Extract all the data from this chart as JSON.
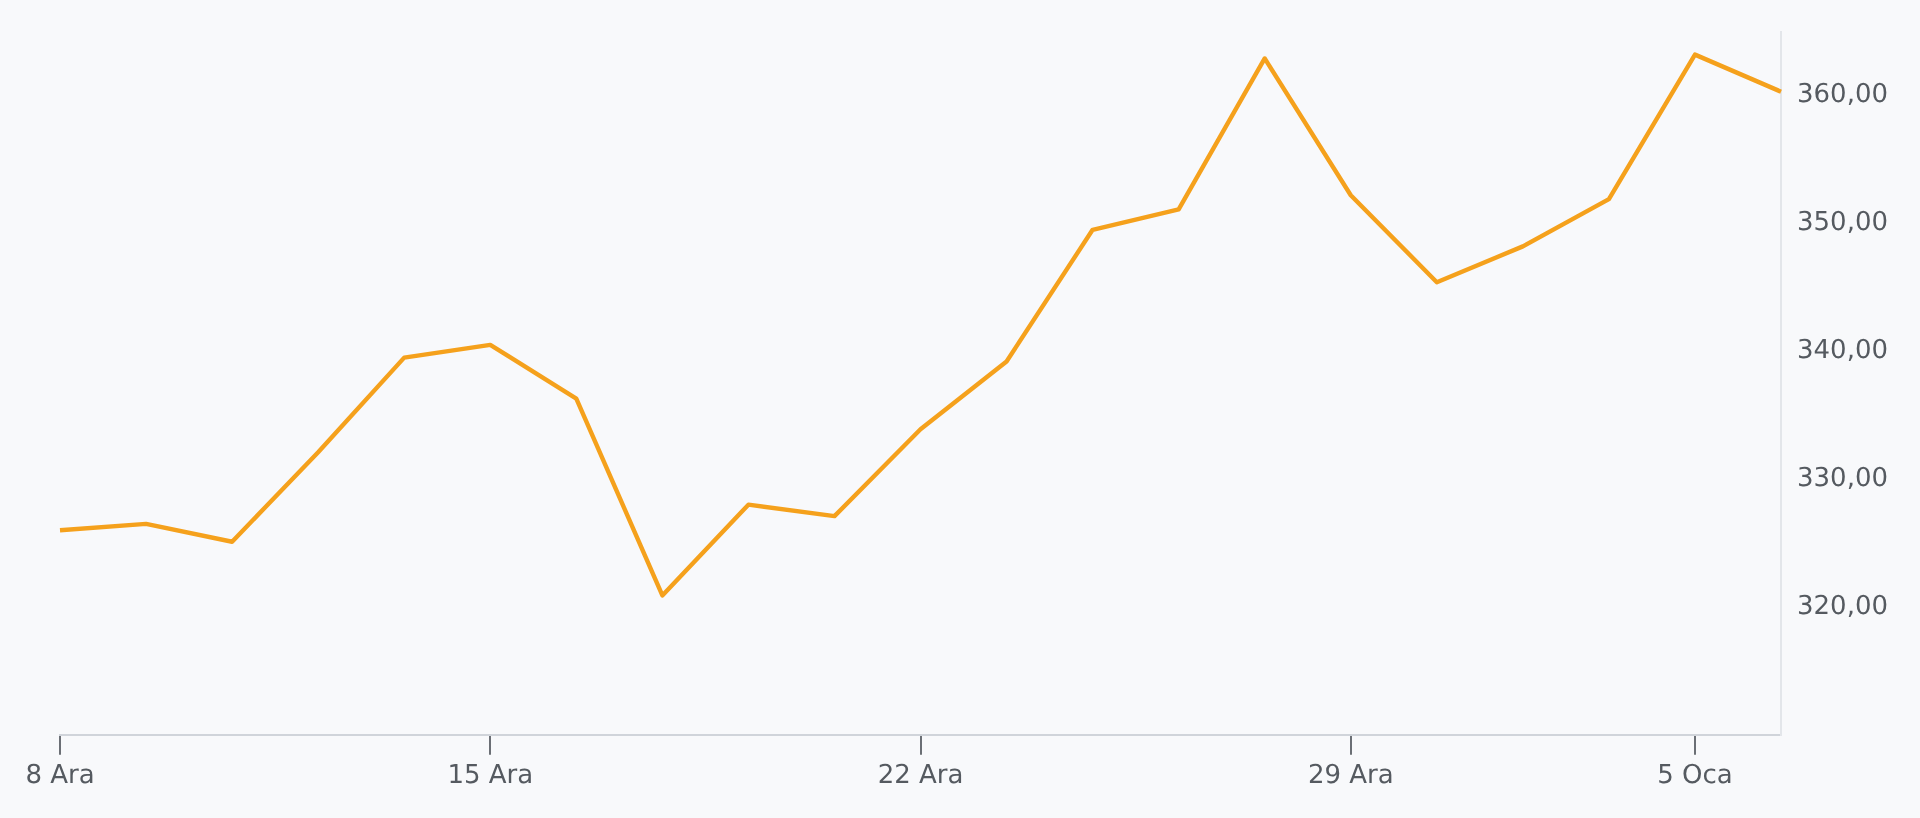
{
  "chart_data": {
    "type": "line",
    "categories": [
      "8 Ara",
      null,
      null,
      null,
      null,
      "15 Ara",
      null,
      null,
      null,
      null,
      "22 Ara",
      null,
      null,
      null,
      null,
      "29 Ara",
      null,
      null,
      null,
      "5 Oca",
      null
    ],
    "series": [
      {
        "color": "#f5a11c",
        "values": [
          326.0,
          326.5,
          325.1,
          332.1,
          339.5,
          340.5,
          336.3,
          320.9,
          328.0,
          327.1,
          333.9,
          339.2,
          349.5,
          351.1,
          362.9,
          352.2,
          345.4,
          348.2,
          351.9,
          363.2,
          360.3
        ]
      }
    ],
    "ylim": [
      310,
      365
    ],
    "yticks": [
      {
        "value": 320,
        "label": "320,00"
      },
      {
        "value": 330,
        "label": "330,00"
      },
      {
        "value": 340,
        "label": "340,00"
      },
      {
        "value": 350,
        "label": "350,00"
      },
      {
        "value": 360,
        "label": "360,00"
      }
    ],
    "grid": false,
    "legend": false,
    "marker": "none",
    "line_style": "solid"
  }
}
